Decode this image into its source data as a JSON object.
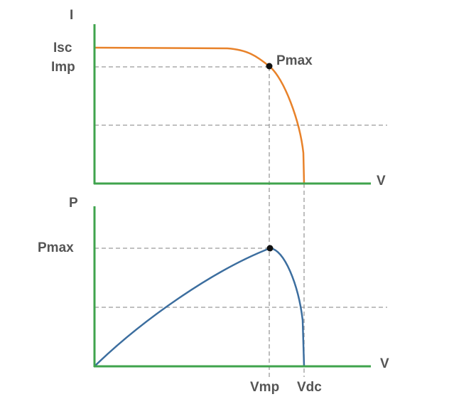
{
  "top_chart": {
    "y_axis_label": "I",
    "x_axis_label": "V",
    "isc_label": "Isc",
    "imp_label": "Imp",
    "point_label": "Pmax"
  },
  "bottom_chart": {
    "y_axis_label": "P",
    "x_axis_label": "V",
    "pmax_label": "Pmax",
    "vmp_label": "Vmp",
    "vdc_label": "Vdc"
  }
}
